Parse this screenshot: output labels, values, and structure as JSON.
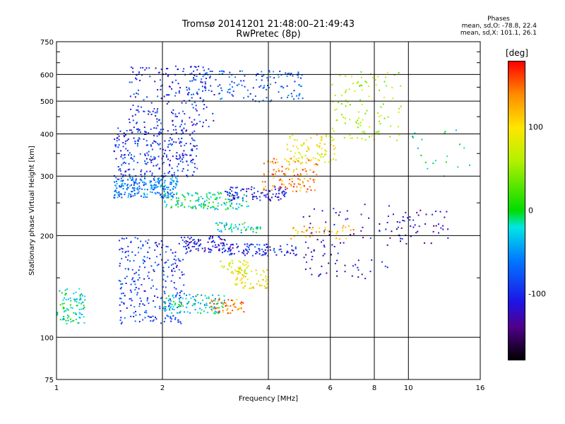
{
  "chart_data": {
    "type": "scatter",
    "title": "Tromsø 20141201 21:48:00–21:49:43",
    "subtitle": "RwPretec (8p)",
    "xlabel": "Frequency [MHz]",
    "ylabel": "Stationary phase Virtual Height [km]",
    "x_scale": "log",
    "y_scale": "log",
    "xlim": [
      1,
      16
    ],
    "ylim": [
      75,
      750
    ],
    "x_ticks": [
      1,
      2,
      4,
      6,
      8,
      10,
      16
    ],
    "y_ticks": [
      75,
      100,
      200,
      300,
      400,
      500,
      600,
      750
    ],
    "x_gridlines": [
      2,
      4,
      6,
      8,
      10
    ],
    "y_gridlines": [
      100,
      200,
      300,
      400,
      500,
      600
    ],
    "y_minor_ticks": [
      150,
      250,
      350,
      450,
      550,
      650,
      700
    ],
    "grid": true,
    "phase_stats": {
      "header": "Phases",
      "o_line": "mean, sd,O: -78.8, 22.4",
      "x_line": "mean, sd,X: 101.1, 26.1"
    },
    "colorbar": {
      "unit": "[deg]",
      "range": [
        -180,
        180
      ],
      "tick_values": [
        100,
        0,
        -100
      ],
      "tick_labels": [
        "100",
        "0",
        "-100"
      ]
    },
    "point_clusters": [
      {
        "x": [
          1.0,
          1.2
        ],
        "y": [
          110,
          140
        ],
        "phase": -20,
        "n": 90
      },
      {
        "x": [
          1.45,
          2.2
        ],
        "y": [
          260,
          300
        ],
        "phase": -60,
        "n": 220
      },
      {
        "x": [
          1.45,
          2.5
        ],
        "y": [
          300,
          420
        ],
        "phase": -95,
        "n": 280
      },
      {
        "x": [
          1.6,
          2.8
        ],
        "y": [
          420,
          640
        ],
        "phase": -100,
        "n": 200
      },
      {
        "x": [
          2.4,
          5.0
        ],
        "y": [
          500,
          620
        ],
        "phase": -75,
        "n": 140
      },
      {
        "x": [
          2.0,
          3.5
        ],
        "y": [
          240,
          270
        ],
        "phase": -15,
        "n": 140
      },
      {
        "x": [
          3.0,
          4.5
        ],
        "y": [
          255,
          280
        ],
        "phase": -110,
        "n": 90
      },
      {
        "x": [
          3.8,
          5.5
        ],
        "y": [
          270,
          340
        ],
        "phase": 140,
        "n": 110
      },
      {
        "x": [
          4.5,
          6.2
        ],
        "y": [
          330,
          400
        ],
        "phase": 90,
        "n": 80
      },
      {
        "x": [
          1.5,
          2.3
        ],
        "y": [
          110,
          200
        ],
        "phase": -90,
        "n": 260
      },
      {
        "x": [
          2.0,
          3.0
        ],
        "y": [
          118,
          135
        ],
        "phase": -30,
        "n": 120
      },
      {
        "x": [
          2.3,
          3.0
        ],
        "y": [
          178,
          200
        ],
        "phase": -110,
        "n": 90
      },
      {
        "x": [
          3.0,
          4.8
        ],
        "y": [
          175,
          190
        ],
        "phase": -100,
        "n": 100
      },
      {
        "x": [
          2.7,
          3.4
        ],
        "y": [
          118,
          130
        ],
        "phase": 140,
        "n": 50
      },
      {
        "x": [
          3.2,
          4.0
        ],
        "y": [
          140,
          160
        ],
        "phase": 100,
        "n": 60
      },
      {
        "x": [
          2.9,
          3.5
        ],
        "y": [
          155,
          170
        ],
        "phase": 80,
        "n": 40
      },
      {
        "x": [
          2.8,
          3.8
        ],
        "y": [
          205,
          220
        ],
        "phase": -20,
        "n": 50
      },
      {
        "x": [
          4.5,
          7.0
        ],
        "y": [
          195,
          215
        ],
        "phase": 120,
        "n": 40
      },
      {
        "x": [
          5.0,
          9.0
        ],
        "y": [
          150,
          250
        ],
        "phase": -120,
        "n": 90
      },
      {
        "x": [
          6.0,
          9.5
        ],
        "y": [
          380,
          620
        ],
        "phase": 60,
        "n": 110
      },
      {
        "x": [
          9.0,
          13.0
        ],
        "y": [
          190,
          240
        ],
        "phase": -120,
        "n": 50
      },
      {
        "x": [
          10.0,
          15.0
        ],
        "y": [
          300,
          420
        ],
        "phase": -20,
        "n": 20
      }
    ]
  }
}
